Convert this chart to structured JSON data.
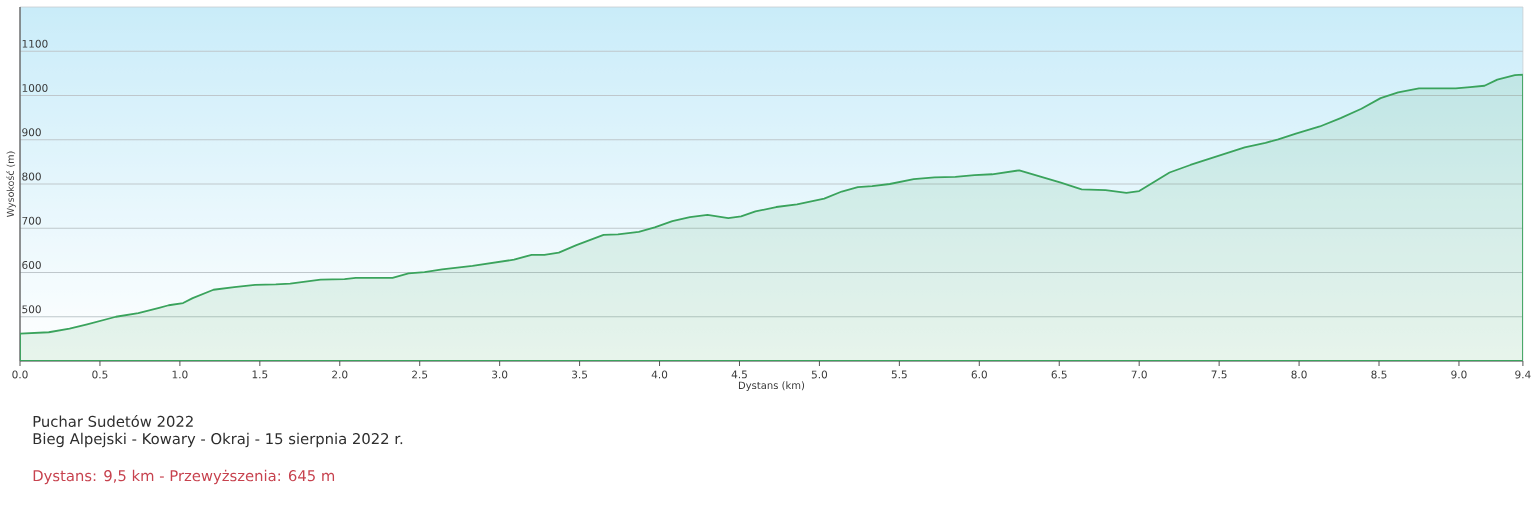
{
  "chart_data": {
    "type": "area",
    "title": "Puchar Sudetów 2022",
    "subtitle": "Bieg Alpejski - Kowary - Okraj - 15 sierpnia 2022 r.",
    "annotations": [
      "Dystans: 9,5 km - Przewyższenia: 645 m"
    ],
    "xlabel": "Dystans  (km)",
    "ylabel": "Wysokość (m)",
    "x": [
      0,
      0.18,
      0.31,
      0.42,
      0.6,
      0.74,
      0.87,
      0.93,
      1.02,
      1.08,
      1.21,
      1.34,
      1.47,
      1.6,
      1.69,
      1.88,
      2.03,
      2.1,
      2.33,
      2.43,
      2.53,
      2.64,
      2.83,
      2.96,
      3.09,
      3.2,
      3.28,
      3.37,
      3.48,
      3.65,
      3.74,
      3.87,
      3.97,
      4.08,
      4.19,
      4.3,
      4.43,
      4.51,
      4.6,
      4.73,
      4.86,
      5.03,
      5.14,
      5.24,
      5.33,
      5.44,
      5.59,
      5.72,
      5.85,
      5.97,
      6.08,
      6.25,
      6.38,
      6.51,
      6.64,
      6.79,
      6.92,
      7.0,
      7.09,
      7.19,
      7.32,
      7.49,
      7.66,
      7.79,
      7.87,
      7.98,
      8.13,
      8.26,
      8.39,
      8.51,
      8.62,
      8.75,
      8.9,
      8.98,
      9.07,
      9.16,
      9.24,
      9.35,
      9.4
    ],
    "series": [
      {
        "color": "#3aa35c",
        "values": [
          462,
          465,
          473,
          483,
          500,
          508,
          520,
          526,
          531,
          542,
          561,
          567,
          572,
          573,
          575,
          584,
          585,
          588,
          588,
          598,
          601,
          607,
          615,
          622,
          629,
          640,
          640,
          645,
          662,
          685,
          686,
          692,
          702,
          716,
          725,
          730,
          723,
          727,
          738,
          748,
          754,
          767,
          783,
          793,
          795,
          800,
          811,
          815,
          816,
          820,
          822,
          831,
          817,
          803,
          788,
          786,
          780,
          784,
          804,
          826,
          843,
          863,
          883,
          893,
          901,
          914,
          930,
          949,
          970,
          994,
          1007,
          1016,
          1016,
          1016,
          1019,
          1022,
          1036,
          1046,
          1047
        ]
      }
    ],
    "xlim": [
      0,
      9.4
    ],
    "ylim": [
      400,
      1200
    ],
    "xticks": [
      {
        "value": 0,
        "label": "0.0"
      },
      0.5,
      {
        "value": 1,
        "label": "1.0"
      },
      1.5,
      {
        "value": 2,
        "label": "2.0"
      },
      2.5,
      {
        "value": 3,
        "label": "3.0"
      },
      3.5,
      {
        "value": 4,
        "label": "4.0"
      },
      4.5,
      {
        "value": 5,
        "label": "5.0"
      },
      5.5,
      {
        "value": 6,
        "label": "6.0"
      },
      6.5,
      {
        "value": 7,
        "label": "7.0"
      },
      7.5,
      {
        "value": 8,
        "label": "8.0"
      },
      8.5,
      {
        "value": 9,
        "label": "9.0"
      },
      9.4
    ],
    "yticks": [
      500,
      600,
      700,
      800,
      900,
      1000,
      1100
    ],
    "grid": "y"
  }
}
